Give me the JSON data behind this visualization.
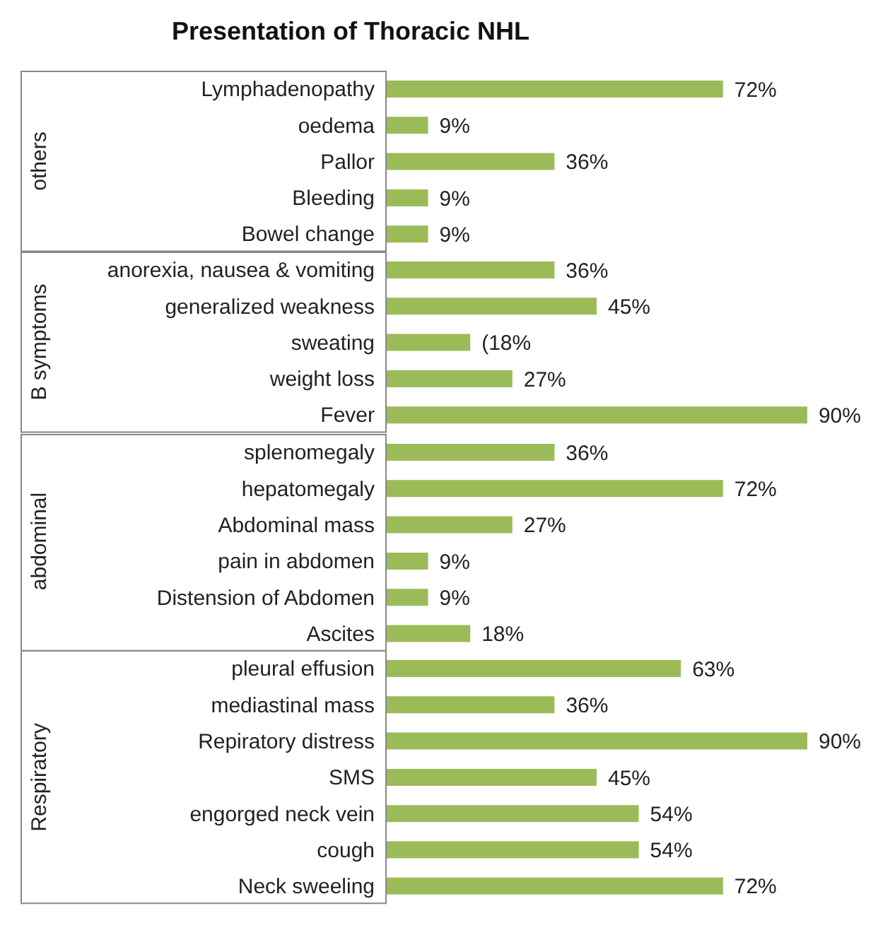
{
  "chart_data": [
    {
      "type": "bar",
      "orientation": "horizontal",
      "title": "Presentation of Thoracic NHL",
      "ylabel": "others",
      "categories": [
        "Lymphadenopathy",
        "oedema",
        "Pallor",
        "Bleeding",
        "Bowel change"
      ],
      "values": [
        72,
        9,
        36,
        9,
        9
      ],
      "value_labels": [
        "72%",
        "9%",
        "36%",
        "9%",
        "9%"
      ],
      "color": "#9bbb59",
      "tick_labels": "y"
    },
    {
      "type": "bar",
      "orientation": "horizontal",
      "ylabel": "B symptoms",
      "categories": [
        "anorexia, nausea & vomiting",
        "generalized weakness",
        "sweating",
        "weight loss",
        "Fever"
      ],
      "values": [
        36,
        45,
        18,
        27,
        90
      ],
      "value_labels": [
        "36%",
        "45%",
        "(18%",
        "27%",
        "90%"
      ],
      "color": "#9bbb59",
      "tick_labels": "y"
    },
    {
      "type": "bar",
      "orientation": "horizontal",
      "ylabel": "abdominal",
      "categories": [
        "splenomegaly",
        "hepatomegaly",
        "Abdominal mass",
        "pain in abdomen",
        "Distension of Abdomen",
        "Ascites"
      ],
      "values": [
        36,
        72,
        27,
        9,
        9,
        18
      ],
      "value_labels": [
        "36%",
        "72%",
        "27%",
        "9%",
        "9%",
        "18%"
      ],
      "color": "#9bbb59",
      "tick_labels": "y"
    },
    {
      "type": "bar",
      "orientation": "horizontal",
      "ylabel": "Respiratory",
      "categories": [
        "pleural effusion",
        "mediastinal mass",
        "Repiratory distress",
        "SMS",
        "engorged neck vein",
        "cough",
        "Neck sweeling"
      ],
      "values": [
        63,
        36,
        90,
        45,
        54,
        54,
        72
      ],
      "value_labels": [
        "63%",
        "36%",
        "90%",
        "45%",
        "54%",
        "54%",
        "72%"
      ],
      "color": "#9bbb59",
      "tick_labels": "y"
    }
  ]
}
